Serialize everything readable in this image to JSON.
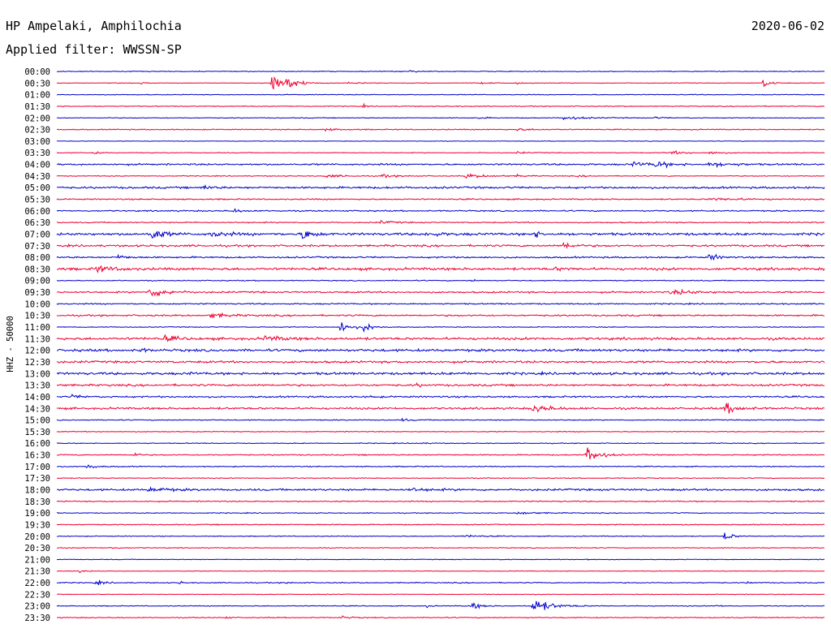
{
  "header": {
    "station": "HP Ampelaki, Amphilochia",
    "date": "2020-06-02",
    "filter": "Applied filter: WWSSN-SP"
  },
  "colors": {
    "odd_trace": "#0000cc",
    "even_trace": "#ee0033",
    "background": "#ffffff"
  },
  "chart_data": {
    "type": "line",
    "title": "HP Ampelaki, Amphilochia",
    "subtitle": "Applied filter: WWSSN-SP",
    "ylabel": "HHZ - 50000",
    "xlabel": "",
    "grid": false,
    "legend": "none",
    "row_interval_minutes": 30,
    "rows": [
      {
        "label": "00:00",
        "color": "blue",
        "noise": 0.5,
        "events": [
          [
            0.46,
            1.2,
            0.01
          ]
        ]
      },
      {
        "label": "00:30",
        "color": "red",
        "noise": 0.4,
        "events": [
          [
            0.11,
            1.2,
            0.005
          ],
          [
            0.28,
            13,
            0.012
          ],
          [
            0.3,
            11,
            0.01
          ],
          [
            0.38,
            1.5,
            0.015
          ],
          [
            0.55,
            1.2,
            0.01
          ],
          [
            0.6,
            1.2,
            0.01
          ],
          [
            0.92,
            6,
            0.008
          ]
        ]
      },
      {
        "label": "01:00",
        "color": "blue",
        "noise": 0.5,
        "events": []
      },
      {
        "label": "01:30",
        "color": "red",
        "noise": 0.5,
        "events": [
          [
            0.4,
            1.5,
            0.005
          ]
        ]
      },
      {
        "label": "02:00",
        "color": "blue",
        "noise": 0.5,
        "events": [
          [
            0.55,
            2,
            0.006
          ],
          [
            0.66,
            2.5,
            0.02
          ],
          [
            0.78,
            1.2,
            0.01
          ]
        ]
      },
      {
        "label": "02:30",
        "color": "red",
        "noise": 0.6,
        "events": [
          [
            0.35,
            1.2,
            0.02
          ],
          [
            0.6,
            1.2,
            0.02
          ]
        ]
      },
      {
        "label": "03:00",
        "color": "blue",
        "noise": 0.3,
        "events": []
      },
      {
        "label": "03:30",
        "color": "red",
        "noise": 0.5,
        "events": [
          [
            0.05,
            3,
            0.005
          ],
          [
            0.6,
            1.2,
            0.01
          ],
          [
            0.8,
            2,
            0.02
          ],
          [
            0.85,
            2,
            0.015
          ]
        ]
      },
      {
        "label": "04:00",
        "color": "blue",
        "noise": 1,
        "events": [
          [
            0.75,
            3,
            0.02
          ],
          [
            0.78,
            4,
            0.015
          ],
          [
            0.85,
            3,
            0.025
          ]
        ]
      },
      {
        "label": "04:30",
        "color": "red",
        "noise": 0.5,
        "events": [
          [
            0.35,
            2,
            0.02
          ],
          [
            0.42,
            2,
            0.02
          ],
          [
            0.53,
            3,
            0.025
          ],
          [
            0.6,
            1.2,
            0.01
          ],
          [
            0.68,
            1.2,
            0.01
          ]
        ]
      },
      {
        "label": "05:00",
        "color": "blue",
        "noise": 1.2,
        "events": [
          [
            0.19,
            3,
            0.01
          ]
        ]
      },
      {
        "label": "05:30",
        "color": "red",
        "noise": 0.8,
        "events": [
          [
            0.85,
            1.5,
            0.04
          ]
        ]
      },
      {
        "label": "06:00",
        "color": "blue",
        "noise": 0.8,
        "events": [
          [
            0.23,
            2.5,
            0.01
          ]
        ]
      },
      {
        "label": "06:30",
        "color": "red",
        "noise": 0.7,
        "events": [
          [
            0.42,
            2,
            0.015
          ]
        ]
      },
      {
        "label": "07:00",
        "color": "blue",
        "noise": 1.5,
        "events": [
          [
            0.12,
            11,
            0.012
          ],
          [
            0.2,
            3,
            0.02
          ],
          [
            0.32,
            9,
            0.01
          ],
          [
            0.48,
            2,
            0.02
          ],
          [
            0.62,
            5,
            0.008
          ]
        ]
      },
      {
        "label": "07:30",
        "color": "red",
        "noise": 1.2,
        "events": [
          [
            0.66,
            5,
            0.01
          ]
        ]
      },
      {
        "label": "08:00",
        "color": "blue",
        "noise": 1,
        "events": [
          [
            0.08,
            3,
            0.01
          ],
          [
            0.85,
            5,
            0.01
          ]
        ]
      },
      {
        "label": "08:30",
        "color": "red",
        "noise": 1.5,
        "events": [
          [
            0.05,
            4,
            0.02
          ],
          [
            0.65,
            2,
            0.01
          ]
        ]
      },
      {
        "label": "09:00",
        "color": "blue",
        "noise": 0.6,
        "events": [
          [
            0.54,
            1.5,
            0.005
          ]
        ]
      },
      {
        "label": "09:30",
        "color": "red",
        "noise": 1,
        "events": [
          [
            0.12,
            7,
            0.02
          ],
          [
            0.8,
            3,
            0.03
          ]
        ]
      },
      {
        "label": "10:00",
        "color": "blue",
        "noise": 0.8,
        "events": []
      },
      {
        "label": "10:30",
        "color": "red",
        "noise": 1,
        "events": [
          [
            0.2,
            3,
            0.02
          ]
        ]
      },
      {
        "label": "11:00",
        "color": "blue",
        "noise": 0.5,
        "events": [
          [
            0.37,
            10,
            0.01
          ],
          [
            0.4,
            6,
            0.01
          ]
        ]
      },
      {
        "label": "11:30",
        "color": "red",
        "noise": 1.5,
        "events": [
          [
            0.14,
            3,
            0.015
          ],
          [
            0.27,
            3,
            0.02
          ]
        ]
      },
      {
        "label": "12:00",
        "color": "blue",
        "noise": 1.5,
        "events": [
          [
            0.11,
            3,
            0.005
          ]
        ]
      },
      {
        "label": "12:30",
        "color": "red",
        "noise": 1.3,
        "events": []
      },
      {
        "label": "13:00",
        "color": "blue",
        "noise": 1.5,
        "events": [
          [
            0.17,
            2,
            0.005
          ]
        ]
      },
      {
        "label": "13:30",
        "color": "red",
        "noise": 1.2,
        "events": [
          [
            0.47,
            3,
            0.003
          ]
        ]
      },
      {
        "label": "14:00",
        "color": "blue",
        "noise": 1,
        "events": [
          [
            0.02,
            2,
            0.01
          ],
          [
            0.41,
            2,
            0.005
          ]
        ]
      },
      {
        "label": "14:30",
        "color": "red",
        "noise": 1.2,
        "events": [
          [
            0.62,
            5,
            0.02
          ],
          [
            0.87,
            7,
            0.015
          ]
        ]
      },
      {
        "label": "15:00",
        "color": "blue",
        "noise": 0.6,
        "events": [
          [
            0.45,
            1.5,
            0.01
          ]
        ]
      },
      {
        "label": "15:30",
        "color": "red",
        "noise": 0.5,
        "events": []
      },
      {
        "label": "16:00",
        "color": "blue",
        "noise": 0.5,
        "events": [
          [
            0.47,
            1.2,
            0.01
          ]
        ]
      },
      {
        "label": "16:30",
        "color": "red",
        "noise": 0.7,
        "events": [
          [
            0.1,
            4,
            0.005
          ],
          [
            0.69,
            14,
            0.012
          ]
        ]
      },
      {
        "label": "17:00",
        "color": "blue",
        "noise": 0.6,
        "events": [
          [
            0.04,
            3,
            0.01
          ]
        ]
      },
      {
        "label": "17:30",
        "color": "red",
        "noise": 0.5,
        "events": []
      },
      {
        "label": "18:00",
        "color": "blue",
        "noise": 1.2,
        "events": [
          [
            0.12,
            3,
            0.02
          ],
          [
            0.46,
            2,
            0.02
          ]
        ]
      },
      {
        "label": "18:30",
        "color": "red",
        "noise": 0.7,
        "events": []
      },
      {
        "label": "19:00",
        "color": "blue",
        "noise": 0.5,
        "events": [
          [
            0.6,
            2,
            0.02
          ]
        ]
      },
      {
        "label": "19:30",
        "color": "red",
        "noise": 0.6,
        "events": []
      },
      {
        "label": "20:00",
        "color": "blue",
        "noise": 0.5,
        "events": [
          [
            0.53,
            1.5,
            0.02
          ],
          [
            0.87,
            7,
            0.008
          ]
        ]
      },
      {
        "label": "20:30",
        "color": "red",
        "noise": 0.5,
        "events": [
          [
            0.07,
            2,
            0.005
          ]
        ]
      },
      {
        "label": "21:00",
        "color": "blue",
        "noise": 0.4,
        "events": [
          [
            0.69,
            1.5,
            0.003
          ]
        ]
      },
      {
        "label": "21:30",
        "color": "red",
        "noise": 0.4,
        "events": [
          [
            0.03,
            2,
            0.005
          ]
        ]
      },
      {
        "label": "22:00",
        "color": "blue",
        "noise": 0.6,
        "events": [
          [
            0.05,
            3,
            0.01
          ],
          [
            0.16,
            2,
            0.004
          ],
          [
            0.3,
            2,
            0.004
          ],
          [
            0.9,
            2,
            0.004
          ]
        ]
      },
      {
        "label": "22:30",
        "color": "red",
        "noise": 0.4,
        "events": []
      },
      {
        "label": "23:00",
        "color": "blue",
        "noise": 0.5,
        "events": [
          [
            0.48,
            2,
            0.005
          ],
          [
            0.54,
            5,
            0.01
          ],
          [
            0.62,
            10,
            0.02
          ],
          [
            0.86,
            2,
            0.005
          ]
        ]
      },
      {
        "label": "23:30",
        "color": "red",
        "noise": 0.6,
        "events": [
          [
            0.22,
            1.5,
            0.005
          ],
          [
            0.37,
            2,
            0.01
          ]
        ]
      }
    ]
  }
}
